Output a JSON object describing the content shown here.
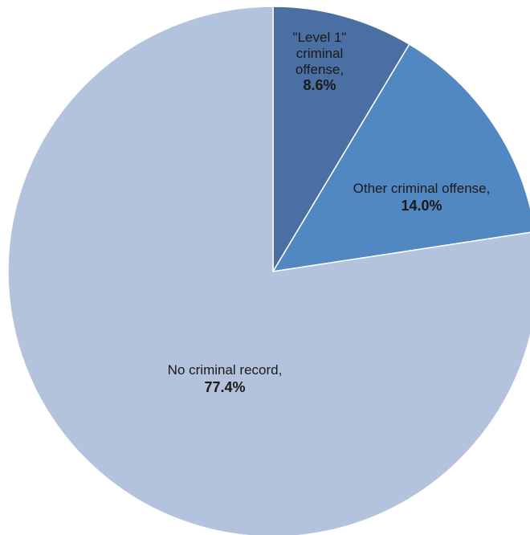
{
  "chart_data": {
    "type": "pie",
    "title": "",
    "start_angle_deg": 0,
    "direction": "clockwise",
    "slices": [
      {
        "label_lines": [
          "\"Level 1\"",
          "criminal",
          "offense,"
        ],
        "value_text": "8.6%",
        "value": 8.6,
        "color": "#4a70a3"
      },
      {
        "label_lines": [
          "Other criminal offense,"
        ],
        "value_text": "14.0%",
        "value": 14.0,
        "color": "#5188c2"
      },
      {
        "label_lines": [
          "No criminal record,"
        ],
        "value_text": "77.4%",
        "value": 77.4,
        "color": "#b3c3dd"
      }
    ],
    "legend": "none",
    "data_labels": "inside"
  }
}
